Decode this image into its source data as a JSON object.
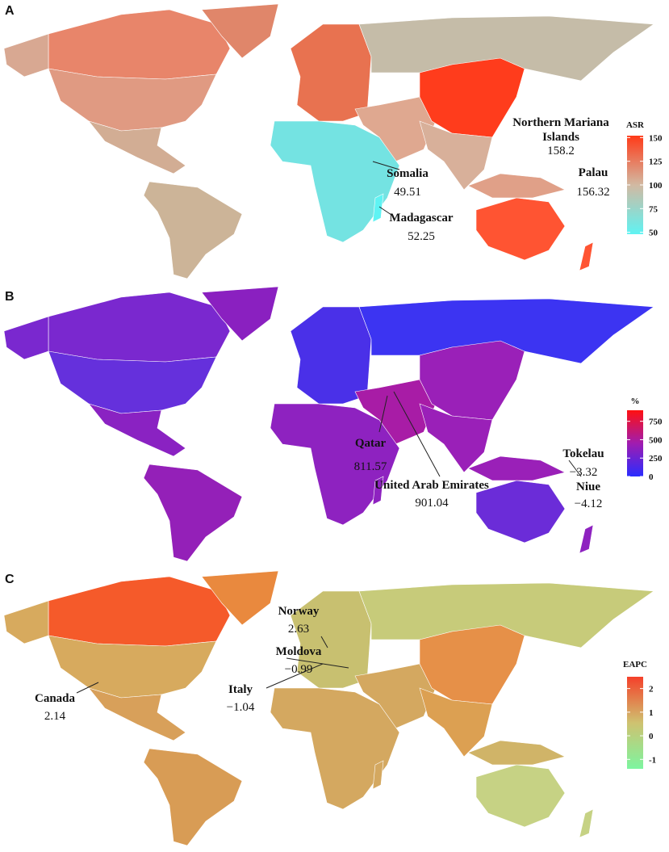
{
  "panels": [
    {
      "label": "A",
      "legend": {
        "title": "ASR",
        "range": [
          48,
          152
        ],
        "ticks": [
          150,
          125,
          100,
          75,
          50
        ],
        "colors": [
          "#5ff3f3",
          "#d2b9a2",
          "#ff3a18"
        ]
      },
      "annotations": [
        {
          "name": [
            "Northern Mariana",
            "Islands"
          ],
          "value": "158.2"
        },
        {
          "name": [
            "Somalia"
          ],
          "value": "49.51"
        },
        {
          "name": [
            "Palau"
          ],
          "value": "156.32"
        },
        {
          "name": [
            "Madagascar"
          ],
          "value": "52.25"
        }
      ]
    },
    {
      "label": "B",
      "legend": {
        "title": "%",
        "range": [
          0,
          900
        ],
        "ticks": [
          750,
          500,
          250,
          0
        ],
        "colors": [
          "#2a2cff",
          "#a01cb0",
          "#ff1010"
        ]
      },
      "annotations": [
        {
          "name": [
            "Qatar"
          ],
          "value": "811.57"
        },
        {
          "name": [
            "United Arab Emirates"
          ],
          "value": "901.04"
        },
        {
          "name": [
            "Tokelau"
          ],
          "value": "−3.32"
        },
        {
          "name": [
            "Niue"
          ],
          "value": "−4.12"
        }
      ]
    },
    {
      "label": "C",
      "legend": {
        "title": "EAPC",
        "range": [
          -1.4,
          2.5
        ],
        "ticks": [
          2,
          1,
          0,
          -1
        ],
        "colors": [
          "#7df5a0",
          "#cfc270",
          "#f5402a"
        ]
      },
      "annotations": [
        {
          "name": [
            "Norway"
          ],
          "value": "2.63"
        },
        {
          "name": [
            "Moldova"
          ],
          "value": "−0.99"
        },
        {
          "name": [
            "Italy"
          ],
          "value": "−1.04"
        },
        {
          "name": [
            "Canada"
          ],
          "value": "2.14"
        }
      ]
    }
  ]
}
